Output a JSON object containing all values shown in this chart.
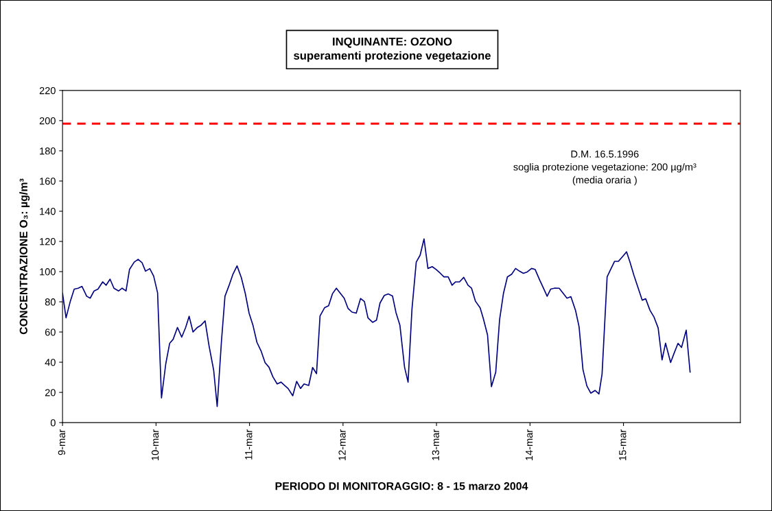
{
  "chart_data": {
    "type": "line",
    "title": "INQUINANTE: OZONO",
    "subtitle": "superamenti protezione vegetazione",
    "xlabel": "PERIODO DI MONITORAGGIO: 8 - 15 marzo 2004",
    "ylabel": "CONCENTRAZIONE O₃: µg/m³",
    "x": [
      "2004-03-09T00:00",
      "2004-03-09T00:54",
      "2004-03-09T02:00",
      "2004-03-09T03:00",
      "2004-03-09T04:00",
      "2004-03-09T05:00",
      "2004-03-09T06:12",
      "2004-03-09T07:06",
      "2004-03-09T08:06",
      "2004-03-09T09:06",
      "2004-03-09T10:18",
      "2004-03-09T11:12",
      "2004-03-09T12:12",
      "2004-03-09T13:12",
      "2004-03-09T14:24",
      "2004-03-09T15:18",
      "2004-03-09T16:18",
      "2004-03-09T17:12",
      "2004-03-09T18:24",
      "2004-03-09T19:24",
      "2004-03-09T20:24",
      "2004-03-09T21:18",
      "2004-03-09T22:24",
      "2004-03-09T23:24",
      "2004-03-10T00:24",
      "2004-03-10T01:24",
      "2004-03-10T02:30",
      "2004-03-10T03:30",
      "2004-03-10T04:24",
      "2004-03-10T05:30",
      "2004-03-10T06:36",
      "2004-03-10T07:36",
      "2004-03-10T08:30",
      "2004-03-10T09:30",
      "2004-03-10T10:36",
      "2004-03-10T11:36",
      "2004-03-10T12:36",
      "2004-03-10T13:36",
      "2004-03-10T14:48",
      "2004-03-10T15:42",
      "2004-03-10T16:48",
      "2004-03-10T17:42",
      "2004-03-10T18:42",
      "2004-03-10T19:42",
      "2004-03-10T20:48",
      "2004-03-10T21:54",
      "2004-03-10T22:54",
      "2004-03-10T23:54",
      "2004-03-11T00:54",
      "2004-03-11T01:54",
      "2004-03-11T03:00",
      "2004-03-11T04:00",
      "2004-03-11T05:00",
      "2004-03-11T06:00",
      "2004-03-11T07:06",
      "2004-03-11T08:06",
      "2004-03-11T09:06",
      "2004-03-11T09:54",
      "2004-03-11T11:06",
      "2004-03-11T12:06",
      "2004-03-11T13:06",
      "2004-03-11T14:00",
      "2004-03-11T15:12",
      "2004-03-11T16:12",
      "2004-03-11T17:12",
      "2004-03-11T18:06",
      "2004-03-11T19:18",
      "2004-03-11T20:18",
      "2004-03-11T21:18",
      "2004-03-11T22:18",
      "2004-03-11T23:18",
      "2004-03-12T00:18",
      "2004-03-12T01:18",
      "2004-03-12T02:18",
      "2004-03-12T03:24",
      "2004-03-12T04:30",
      "2004-03-12T05:30",
      "2004-03-12T06:24",
      "2004-03-12T07:36",
      "2004-03-12T08:36",
      "2004-03-12T09:30",
      "2004-03-12T10:36",
      "2004-03-12T11:36",
      "2004-03-12T12:42",
      "2004-03-12T13:36",
      "2004-03-12T14:36",
      "2004-03-12T15:48",
      "2004-03-12T16:42",
      "2004-03-12T17:42",
      "2004-03-12T18:48",
      "2004-03-12T19:48",
      "2004-03-12T20:48",
      "2004-03-12T21:48",
      "2004-03-12T22:54",
      "2004-03-12T23:54",
      "2004-03-13T00:54",
      "2004-03-13T01:54",
      "2004-03-13T03:00",
      "2004-03-13T04:00",
      "2004-03-13T04:54",
      "2004-03-13T05:54",
      "2004-03-13T07:00",
      "2004-03-13T08:06",
      "2004-03-13T09:00",
      "2004-03-13T10:00",
      "2004-03-13T11:12",
      "2004-03-13T12:00",
      "2004-03-13T13:06",
      "2004-03-13T14:06",
      "2004-03-13T15:12",
      "2004-03-13T16:12",
      "2004-03-13T17:12",
      "2004-03-13T18:12",
      "2004-03-13T19:18",
      "2004-03-13T20:18",
      "2004-03-13T21:18",
      "2004-03-13T22:18",
      "2004-03-13T23:18",
      "2004-03-14T00:24",
      "2004-03-14T01:18",
      "2004-03-14T02:30",
      "2004-03-14T03:24",
      "2004-03-14T04:24",
      "2004-03-14T05:18",
      "2004-03-14T06:24",
      "2004-03-14T07:30",
      "2004-03-14T08:30",
      "2004-03-14T09:30",
      "2004-03-14T10:30",
      "2004-03-14T11:42",
      "2004-03-14T12:36",
      "2004-03-14T13:36",
      "2004-03-14T14:36",
      "2004-03-14T15:36",
      "2004-03-14T16:42",
      "2004-03-14T17:42",
      "2004-03-14T18:30",
      "2004-03-14T19:48",
      "2004-03-14T20:42",
      "2004-03-14T21:42",
      "2004-03-14T22:42",
      "2004-03-14T23:42",
      "2004-03-15T00:48",
      "2004-03-15T01:42",
      "2004-03-15T02:42",
      "2004-03-15T03:42",
      "2004-03-15T04:48",
      "2004-03-15T05:42",
      "2004-03-15T06:48",
      "2004-03-15T07:48",
      "2004-03-15T08:54",
      "2004-03-15T09:54",
      "2004-03-15T10:48",
      "2004-03-15T12:06",
      "2004-03-15T13:00",
      "2004-03-15T14:00",
      "2004-03-15T14:54",
      "2004-03-15T16:06",
      "2004-03-15T17:06"
    ],
    "series": [
      {
        "color": "#000080",
        "values": [
          85.7,
          69.4,
          80.4,
          88.4,
          89,
          90.2,
          83.7,
          82.4,
          87.2,
          88.4,
          93.2,
          91,
          95,
          89,
          87.2,
          89,
          87.2,
          101.5,
          106.3,
          108.1,
          106,
          100.3,
          102,
          97,
          86,
          16.3,
          38.9,
          52.5,
          55.2,
          63,
          56.6,
          63,
          70.4,
          60,
          63,
          64.6,
          67.4,
          51,
          34.7,
          10.7,
          54,
          83.7,
          90.5,
          98,
          103.8,
          96,
          85.7,
          72.4,
          64.3,
          53.2,
          47.2,
          39.7,
          36.7,
          30.3,
          25.6,
          26.8,
          24.4,
          22.6,
          17.8,
          27.3,
          22.6,
          25.6,
          24.6,
          36.5,
          32.4,
          70.6,
          76.2,
          77.4,
          85.4,
          89,
          85.7,
          82.4,
          75.6,
          73.2,
          72.5,
          82.2,
          80.2,
          69.4,
          66.4,
          67.9,
          79.2,
          84.2,
          85.2,
          83.9,
          72.9,
          64.6,
          36.7,
          26.8,
          75.1,
          106.3,
          110.9,
          121.7,
          102.1,
          103.3,
          101.4,
          99.1,
          96.5,
          96.5,
          91,
          93.2,
          93.2,
          96.2,
          91,
          89,
          80.4,
          76,
          69.1,
          58.1,
          23.8,
          33.3,
          68.3,
          85.7,
          96.5,
          98.3,
          102.1,
          100.3,
          98.9,
          99.8,
          102.1,
          101.5,
          94.4,
          89.4,
          83.7,
          88.4,
          89.1,
          89,
          85.7,
          82.4,
          83.4,
          74.2,
          63.5,
          35.1,
          24.3,
          19.5,
          21.3,
          19,
          32.1,
          96.5,
          101.4,
          106.8,
          106.8,
          109.8,
          113.1,
          106,
          97.4,
          89.7,
          81.1,
          82,
          74.4,
          70.1,
          62.7,
          41.5,
          52.6,
          39.8,
          46,
          52.5,
          49.8,
          61.2,
          33.5
        ]
      }
    ],
    "xlim": [
      "2004-03-09T00:00",
      "2004-03-16T06:00"
    ],
    "xticks": [
      {
        "value": "2004-03-09",
        "label": "9-mar"
      },
      {
        "value": "2004-03-10",
        "label": "10-mar"
      },
      {
        "value": "2004-03-11",
        "label": "11-mar"
      },
      {
        "value": "2004-03-12",
        "label": "12-mar"
      },
      {
        "value": "2004-03-13",
        "label": "13-mar"
      },
      {
        "value": "2004-03-14",
        "label": "14-mar"
      },
      {
        "value": "2004-03-15",
        "label": "15-mar"
      }
    ],
    "ylim": [
      0,
      220
    ],
    "yticks": [
      0,
      20,
      40,
      60,
      80,
      100,
      120,
      140,
      160,
      180,
      200,
      220
    ],
    "ref_lines": [
      {
        "axis": "y",
        "value": 198,
        "color": "#ff0000",
        "line_style": "dashed"
      }
    ],
    "annotations": [
      "D.M. 16.5.1996\nsoglia protezione vegetazione: 200 µg/m³\n(media oraria )"
    ],
    "grid": false,
    "legend": false,
    "marker": "none",
    "line_style": "solid"
  }
}
